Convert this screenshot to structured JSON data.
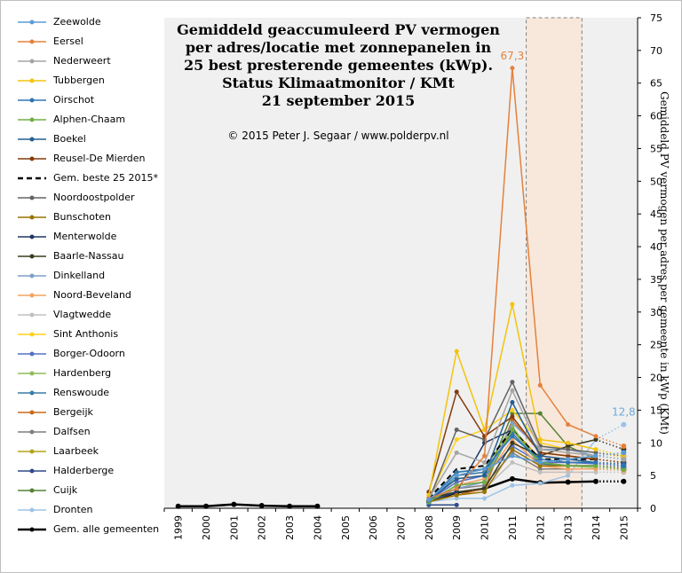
{
  "title_lines": [
    "Gemiddeld  geaccumuleerd PV vermogen",
    "per adres/locatie met zonnepanelen in",
    "25 best presterende gemeentes (kWp).",
    "Status Klimaatmonitor  / KMt",
    "21 september 2015"
  ],
  "copyright": "© 2015 Peter J. Segaar / www.polderpv.nl",
  "chart_data": {
    "type": "line",
    "x": [
      1999,
      2000,
      2001,
      2002,
      2003,
      2004,
      2005,
      2006,
      2007,
      2008,
      2009,
      2010,
      2011,
      2012,
      2013,
      2014,
      2015
    ],
    "xlabel": "",
    "ylabel": "Gemiddeld PV vermogen per adres per gemeente in kWp (KMt)",
    "ylim": [
      0,
      75
    ],
    "yticks": [
      0,
      5,
      10,
      15,
      20,
      25,
      30,
      35,
      40,
      45,
      50,
      55,
      60,
      65,
      70,
      75
    ],
    "highlight_range": [
      2012,
      2013
    ],
    "annotations": [
      {
        "text": "67,3",
        "x": 2011,
        "y": 67.3,
        "color": "#e5813a"
      },
      {
        "text": "12,8",
        "x": 2015,
        "y": 12.8,
        "color": "#6fa8dc"
      }
    ],
    "series": [
      {
        "name": "Zeewolde",
        "color": "#5b9bd5",
        "dash": "",
        "points": [
          [
            2008,
            1.3
          ],
          [
            2009,
            5.0
          ],
          [
            2010,
            6.0
          ],
          [
            2011,
            8.0
          ],
          [
            2012,
            7.0
          ],
          [
            2013,
            7.5
          ],
          [
            2014,
            8.0
          ]
        ],
        "dotted": [
          [
            2014,
            8.0
          ],
          [
            2015,
            8.5
          ]
        ]
      },
      {
        "name": "Eersel",
        "color": "#e5813a",
        "dash": "",
        "points": [
          [
            2008,
            1.5
          ],
          [
            2009,
            3.0
          ],
          [
            2010,
            8.0
          ],
          [
            2011,
            67.3
          ],
          [
            2012,
            18.8
          ],
          [
            2013,
            12.8
          ],
          [
            2014,
            11.0
          ]
        ],
        "dotted": [
          [
            2014,
            11.0
          ],
          [
            2015,
            9.5
          ]
        ]
      },
      {
        "name": "Nederweert",
        "color": "#a5a5a5",
        "dash": "",
        "points": [
          [
            2008,
            1.5
          ],
          [
            2009,
            8.5
          ],
          [
            2010,
            7.0
          ],
          [
            2011,
            18.0
          ],
          [
            2012,
            9.0
          ],
          [
            2013,
            8.5
          ],
          [
            2014,
            8.0
          ]
        ],
        "dotted": [
          [
            2014,
            8.0
          ],
          [
            2015,
            7.5
          ]
        ]
      },
      {
        "name": "Tubbergen",
        "color": "#f2c40d",
        "dash": "",
        "points": [
          [
            2008,
            2.0
          ],
          [
            2009,
            24.0
          ],
          [
            2010,
            12.0
          ],
          [
            2011,
            31.2
          ],
          [
            2012,
            10.5
          ],
          [
            2013,
            10.0
          ],
          [
            2014,
            9.0
          ]
        ],
        "dotted": [
          [
            2014,
            9.0
          ],
          [
            2015,
            8.0
          ]
        ]
      },
      {
        "name": "Oirschot",
        "color": "#2e75b6",
        "dash": "",
        "points": [
          [
            2008,
            1.2
          ],
          [
            2009,
            5.5
          ],
          [
            2010,
            6.0
          ],
          [
            2011,
            11.0
          ],
          [
            2012,
            7.5
          ],
          [
            2013,
            7.0
          ],
          [
            2014,
            7.0
          ]
        ],
        "dotted": [
          [
            2014,
            7.0
          ],
          [
            2015,
            6.5
          ]
        ]
      },
      {
        "name": "Alphen-Chaam",
        "color": "#70ad47",
        "dash": "",
        "points": [
          [
            2008,
            1.0
          ],
          [
            2009,
            3.5
          ],
          [
            2010,
            4.0
          ],
          [
            2011,
            12.0
          ],
          [
            2012,
            7.0
          ],
          [
            2013,
            6.5
          ],
          [
            2014,
            6.5
          ]
        ],
        "dotted": [
          [
            2014,
            6.5
          ],
          [
            2015,
            6.0
          ]
        ]
      },
      {
        "name": "Boekel",
        "color": "#255e91",
        "dash": "",
        "points": [
          [
            2008,
            1.2
          ],
          [
            2009,
            4.5
          ],
          [
            2010,
            5.0
          ],
          [
            2011,
            16.2
          ],
          [
            2012,
            8.0
          ],
          [
            2013,
            7.5
          ],
          [
            2014,
            7.0
          ]
        ],
        "dotted": [
          [
            2014,
            7.0
          ],
          [
            2015,
            6.8
          ]
        ]
      },
      {
        "name": "Reusel-De Mierden",
        "color": "#843c0c",
        "dash": "",
        "points": [
          [
            2008,
            2.5
          ],
          [
            2009,
            17.8
          ],
          [
            2010,
            11.0
          ],
          [
            2011,
            14.0
          ],
          [
            2012,
            8.5
          ],
          [
            2013,
            8.0
          ],
          [
            2014,
            7.5
          ]
        ],
        "dotted": [
          [
            2014,
            7.5
          ],
          [
            2015,
            7.0
          ]
        ]
      },
      {
        "name": "Gem. beste 25 2015*",
        "color": "#000000",
        "dash": "6,4",
        "points": [
          [
            2008,
            1.5
          ],
          [
            2009,
            6.0
          ],
          [
            2010,
            6.5
          ],
          [
            2011,
            12.0
          ],
          [
            2012,
            7.5
          ],
          [
            2013,
            7.5
          ],
          [
            2014,
            7.5
          ]
        ],
        "dotted": []
      },
      {
        "name": "Noordoostpolder",
        "color": "#636363",
        "dash": "",
        "points": [
          [
            2008,
            1.2
          ],
          [
            2009,
            12.0
          ],
          [
            2010,
            10.5
          ],
          [
            2011,
            19.3
          ],
          [
            2012,
            9.5
          ],
          [
            2013,
            9.0
          ],
          [
            2014,
            8.5
          ]
        ],
        "dotted": [
          [
            2014,
            8.5
          ],
          [
            2015,
            8.0
          ]
        ]
      },
      {
        "name": "Bunschoten",
        "color": "#997300",
        "dash": "",
        "points": [
          [
            2008,
            1.0
          ],
          [
            2009,
            2.0
          ],
          [
            2010,
            2.5
          ],
          [
            2011,
            9.0
          ],
          [
            2012,
            6.5
          ],
          [
            2013,
            6.5
          ],
          [
            2014,
            6.5
          ]
        ],
        "dotted": [
          [
            2014,
            6.5
          ],
          [
            2015,
            6.2
          ]
        ]
      },
      {
        "name": "Menterwolde",
        "color": "#1f3864",
        "dash": "",
        "points": [
          [
            2008,
            1.0
          ],
          [
            2009,
            2.5
          ],
          [
            2010,
            10.0
          ],
          [
            2011,
            12.0
          ],
          [
            2012,
            7.0
          ],
          [
            2013,
            6.5
          ],
          [
            2014,
            6.5
          ]
        ],
        "dotted": [
          [
            2014,
            6.5
          ],
          [
            2015,
            6.0
          ]
        ]
      },
      {
        "name": "Baarle-Nassau",
        "color": "#3b3b1e",
        "dash": "",
        "points": [
          [
            2008,
            1.5
          ],
          [
            2009,
            2.5
          ],
          [
            2010,
            3.0
          ],
          [
            2011,
            10.0
          ],
          [
            2012,
            8.0
          ],
          [
            2013,
            9.5
          ],
          [
            2014,
            10.5
          ]
        ],
        "dotted": [
          [
            2014,
            10.5
          ],
          [
            2015,
            9.0
          ]
        ]
      },
      {
        "name": "Dinkelland",
        "color": "#7f9fc9",
        "dash": "",
        "points": [
          [
            2008,
            1.2
          ],
          [
            2009,
            3.0
          ],
          [
            2010,
            4.0
          ],
          [
            2011,
            13.0
          ],
          [
            2012,
            9.0
          ],
          [
            2013,
            9.0
          ],
          [
            2014,
            8.0
          ]
        ],
        "dotted": [
          [
            2014,
            8.0
          ],
          [
            2015,
            7.5
          ]
        ]
      },
      {
        "name": "Noord-Beveland",
        "color": "#f4a261",
        "dash": "",
        "points": [
          [
            2008,
            1.0
          ],
          [
            2009,
            3.5
          ],
          [
            2010,
            4.5
          ],
          [
            2011,
            10.5
          ],
          [
            2012,
            6.5
          ],
          [
            2013,
            6.0
          ],
          [
            2014,
            6.0
          ]
        ],
        "dotted": [
          [
            2014,
            6.0
          ],
          [
            2015,
            5.8
          ]
        ]
      },
      {
        "name": "Vlagtwedde",
        "color": "#c0c0c0",
        "dash": "",
        "points": [
          [
            2008,
            1.0
          ],
          [
            2009,
            2.5
          ],
          [
            2010,
            3.0
          ],
          [
            2011,
            7.0
          ],
          [
            2012,
            5.5
          ],
          [
            2013,
            5.5
          ],
          [
            2014,
            5.5
          ]
        ],
        "dotted": [
          [
            2014,
            5.5
          ],
          [
            2015,
            5.5
          ]
        ]
      },
      {
        "name": "Sint Anthonis",
        "color": "#ffd11a",
        "dash": "",
        "points": [
          [
            2008,
            1.5
          ],
          [
            2009,
            10.5
          ],
          [
            2010,
            12.0
          ],
          [
            2011,
            15.0
          ],
          [
            2012,
            10.0
          ],
          [
            2013,
            9.0
          ],
          [
            2014,
            8.5
          ]
        ],
        "dotted": [
          [
            2014,
            8.5
          ],
          [
            2015,
            7.8
          ]
        ]
      },
      {
        "name": "Borger-Odoorn",
        "color": "#5470c6",
        "dash": "",
        "points": [
          [
            2008,
            1.2
          ],
          [
            2009,
            4.0
          ],
          [
            2010,
            5.0
          ],
          [
            2011,
            9.5
          ],
          [
            2012,
            7.0
          ],
          [
            2013,
            7.0
          ],
          [
            2014,
            6.8
          ]
        ],
        "dotted": [
          [
            2014,
            6.8
          ],
          [
            2015,
            6.5
          ]
        ]
      },
      {
        "name": "Hardenberg",
        "color": "#8fbc5a",
        "dash": "",
        "points": [
          [
            2008,
            1.0
          ],
          [
            2009,
            5.5
          ],
          [
            2010,
            6.0
          ],
          [
            2011,
            12.5
          ],
          [
            2012,
            6.5
          ],
          [
            2013,
            6.5
          ],
          [
            2014,
            6.2
          ]
        ],
        "dotted": [
          [
            2014,
            6.2
          ],
          [
            2015,
            6.0
          ]
        ]
      },
      {
        "name": "Renswoude",
        "color": "#3a7ca5",
        "dash": "",
        "points": [
          [
            2008,
            0.8
          ],
          [
            2009,
            5.0
          ],
          [
            2010,
            5.5
          ],
          [
            2011,
            11.5
          ],
          [
            2012,
            6.8
          ],
          [
            2013,
            6.5
          ],
          [
            2014,
            6.5
          ]
        ],
        "dotted": [
          [
            2014,
            6.5
          ],
          [
            2015,
            6.3
          ]
        ]
      },
      {
        "name": "Bergeijk",
        "color": "#c86a1e",
        "dash": "",
        "points": [
          [
            2008,
            1.0
          ],
          [
            2009,
            2.0
          ],
          [
            2010,
            3.0
          ],
          [
            2011,
            13.5
          ],
          [
            2012,
            8.5
          ],
          [
            2013,
            8.0
          ],
          [
            2014,
            7.5
          ]
        ],
        "dotted": [
          [
            2014,
            7.5
          ],
          [
            2015,
            7.0
          ]
        ]
      },
      {
        "name": "Dalfsen",
        "color": "#7f7f7f",
        "dash": "",
        "points": [
          [
            2008,
            1.0
          ],
          [
            2009,
            3.0
          ],
          [
            2010,
            3.5
          ],
          [
            2011,
            8.5
          ],
          [
            2012,
            6.0
          ],
          [
            2013,
            6.0
          ],
          [
            2014,
            6.0
          ]
        ],
        "dotted": [
          [
            2014,
            6.0
          ],
          [
            2015,
            5.8
          ]
        ]
      },
      {
        "name": "Laarbeek",
        "color": "#b3a41a",
        "dash": "",
        "points": [
          [
            2008,
            1.2
          ],
          [
            2009,
            4.5
          ],
          [
            2010,
            5.0
          ],
          [
            2011,
            12.2
          ],
          [
            2012,
            7.5
          ],
          [
            2013,
            7.0
          ],
          [
            2014,
            7.0
          ]
        ],
        "dotted": [
          [
            2014,
            7.0
          ],
          [
            2015,
            6.8
          ]
        ]
      },
      {
        "name": "Halderberge",
        "color": "#2f4a8a",
        "dash": "",
        "points": [
          [
            2008,
            0.5
          ],
          [
            2009,
            0.5
          ]
        ],
        "dotted": []
      },
      {
        "name": "Cuijk",
        "color": "#548235",
        "dash": "",
        "points": [
          [
            2008,
            1.0
          ],
          [
            2009,
            3.5
          ],
          [
            2010,
            4.0
          ],
          [
            2011,
            14.5
          ],
          [
            2012,
            14.5
          ],
          [
            2013,
            9.5
          ],
          [
            2014,
            7.5
          ]
        ],
        "dotted": [
          [
            2014,
            7.5
          ],
          [
            2015,
            7.0
          ]
        ]
      },
      {
        "name": "Dronten",
        "color": "#9dc3e6",
        "dash": "",
        "points": [
          [
            2008,
            1.0
          ],
          [
            2009,
            1.5
          ],
          [
            2010,
            1.5
          ],
          [
            2011,
            3.5
          ],
          [
            2012,
            3.8
          ],
          [
            2013,
            5.0
          ],
          [
            2014,
            10.5
          ]
        ],
        "dotted": [
          [
            2014,
            10.5
          ],
          [
            2015,
            12.8
          ]
        ]
      },
      {
        "name": "Gem. alle gemeenten",
        "color": "#000000",
        "dash": "",
        "points": [
          [
            1999,
            0.3
          ],
          [
            2000,
            0.3
          ],
          [
            2001,
            0.6
          ],
          [
            2002,
            0.4
          ],
          [
            2003,
            0.3
          ],
          [
            2004,
            0.3
          ],
          [
            2008,
            1.0
          ],
          [
            2009,
            2.4
          ],
          [
            2010,
            3.0
          ],
          [
            2011,
            4.5
          ],
          [
            2012,
            3.9
          ],
          [
            2013,
            4.0
          ],
          [
            2014,
            4.1
          ]
        ],
        "dotted": [
          [
            2014,
            4.1
          ],
          [
            2015,
            4.1
          ]
        ]
      }
    ]
  },
  "colors": {
    "plot_bg": "#f0f0f0",
    "highlight_fill": "#f8e8dc",
    "axis": "#000000"
  }
}
